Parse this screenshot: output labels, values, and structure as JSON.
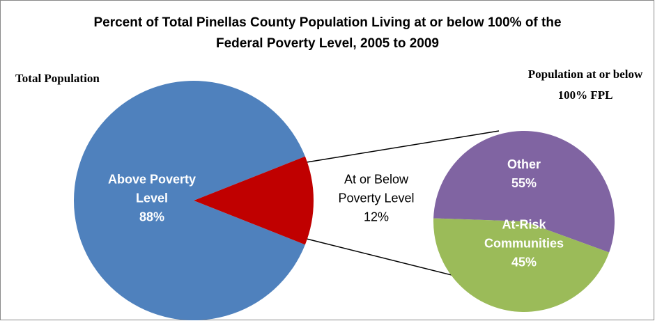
{
  "chart_data": {
    "type": "pie-of-pie",
    "title": "Percent of Total Pinellas County Population Living at or below 100% of the Federal Poverty Level, 2005 to 2009",
    "pies": [
      {
        "subtitle": "Total Population",
        "categories": [
          "Above Poverty Level",
          "At or Below Poverty Level"
        ],
        "values": [
          88,
          12
        ],
        "value_labels": [
          "88%",
          "12%"
        ],
        "colors": [
          "#4f81bd",
          "#c00000"
        ]
      },
      {
        "subtitle": "Population at or below 100% FPL",
        "categories": [
          "Other",
          "At-Risk Communities"
        ],
        "values": [
          55,
          45
        ],
        "value_labels": [
          "55%",
          "45%"
        ],
        "colors": [
          "#8064a2",
          "#9bbb59"
        ]
      }
    ]
  }
}
